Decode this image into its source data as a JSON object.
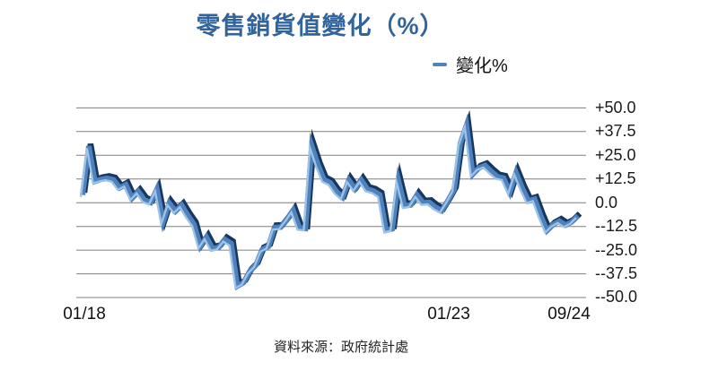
{
  "title": "零售銷貨值變化（%）",
  "legend": {
    "label": "變化%",
    "marker_color": "#4F81BD"
  },
  "source_note": "資料來源：政府統計處",
  "colors": {
    "title_text": "#31639C",
    "line_front": "#4F81BD",
    "line_top_edge": "#17375E",
    "line_highlight": "#9CC3E8",
    "gridline": "#7f7f7f",
    "axis_text": "#1a1a1a"
  },
  "chart_data": {
    "type": "line",
    "style": "3d-ribbon",
    "grid": "horizontal",
    "legend_position": "top-right",
    "x_axis": {
      "start": "01/18",
      "end": "09/24",
      "frequency": "monthly",
      "tick_labels": [
        {
          "label": "01/18",
          "month_index": 0
        },
        {
          "label": "01/23",
          "month_index": 60
        },
        {
          "label": "09/24",
          "month_index": 80
        }
      ]
    },
    "y_axis": {
      "min": -50,
      "max": 50,
      "interval": 12.5,
      "tick_labels": [
        "+50.0",
        "+37.5",
        "+25.0",
        "+12.5",
        "0.0",
        "--12.5",
        "--25.0",
        "--37.5",
        "--50.0"
      ]
    },
    "series": [
      {
        "name": "變化%",
        "color": "#4F81BD",
        "values": [
          4.1,
          29.8,
          11.2,
          12.3,
          12.9,
          12.1,
          7.8,
          9.5,
          2.4,
          5.9,
          1.4,
          0.1,
          7.1,
          -10.1,
          -0.2,
          -4.5,
          -1.3,
          -6.7,
          -11.4,
          -23.0,
          -18.2,
          -24.3,
          -23.6,
          -19.4,
          -21.5,
          -44.0,
          -42.1,
          -36.1,
          -32.8,
          -24.7,
          -23.1,
          -13.1,
          -12.9,
          -8.8,
          -4.0,
          -13.2,
          -13.6,
          30.0,
          20.1,
          12.1,
          10.5,
          5.8,
          2.9,
          11.9,
          7.3,
          12.0,
          7.1,
          6.2,
          4.1,
          -14.6,
          -13.8,
          11.7,
          -1.7,
          -1.2,
          4.1,
          -0.1,
          0.2,
          -2.4,
          -4.2,
          1.1,
          7.0,
          31.3,
          40.9,
          15.0,
          18.4,
          19.6,
          16.5,
          13.7,
          13.0,
          5.6,
          15.9,
          7.8,
          0.9,
          1.9,
          -7.0,
          -14.7,
          -11.5,
          -9.7,
          -11.8,
          -10.1,
          -6.9
        ]
      }
    ]
  }
}
